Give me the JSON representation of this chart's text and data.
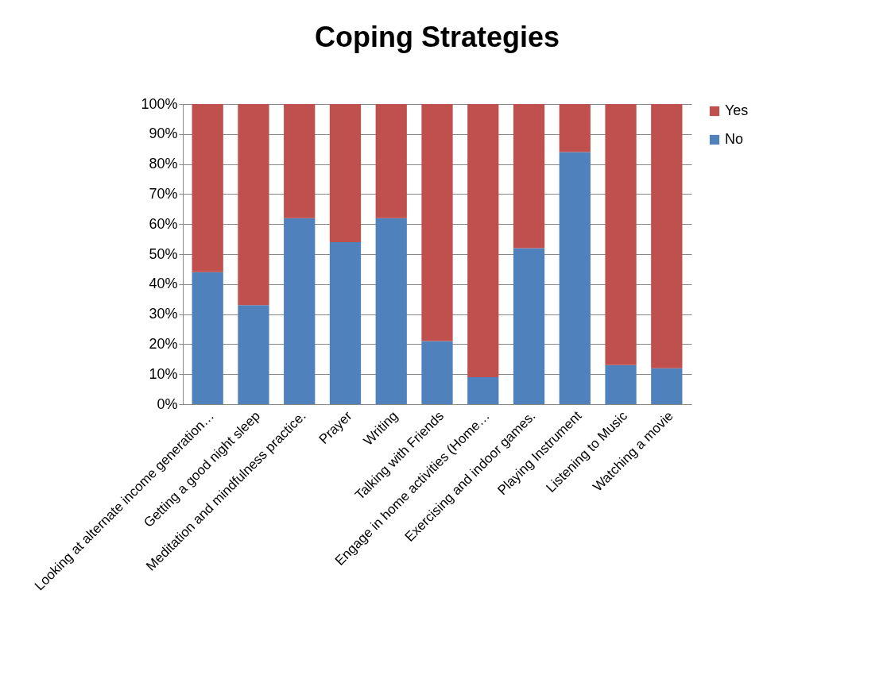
{
  "chart_data": {
    "type": "bar",
    "title": "Coping Strategies",
    "stacked": true,
    "categories": [
      "Looking at alternate income generation…",
      "Getting a good night sleep",
      "Meditation and mindfulness practice.",
      "Prayer",
      "Writing",
      "Talking with Friends",
      "Engage in home activities (Home…",
      "Exercising and indoor games.",
      "Playing Instrument",
      "Listening to Music",
      "Watching a movie"
    ],
    "series": [
      {
        "name": "No",
        "color": "#4f81bd",
        "values": [
          44,
          33,
          62,
          54,
          62,
          21,
          9,
          52,
          84,
          13,
          12
        ]
      },
      {
        "name": "Yes",
        "color": "#c0504d",
        "values": [
          56,
          67,
          38,
          46,
          38,
          79,
          91,
          48,
          16,
          87,
          88
        ]
      }
    ],
    "ylim": [
      0,
      100
    ],
    "yticks": [
      {
        "value": 0,
        "label": "0%"
      },
      {
        "value": 10,
        "label": "10%"
      },
      {
        "value": 20,
        "label": "20%"
      },
      {
        "value": 30,
        "label": "30%"
      },
      {
        "value": 40,
        "label": "40%"
      },
      {
        "value": 50,
        "label": "50%"
      },
      {
        "value": 60,
        "label": "60%"
      },
      {
        "value": 70,
        "label": "70%"
      },
      {
        "value": 80,
        "label": "80%"
      },
      {
        "value": 90,
        "label": "90%"
      },
      {
        "value": 100,
        "label": "100%"
      }
    ],
    "grid": "y",
    "legend": "right"
  }
}
